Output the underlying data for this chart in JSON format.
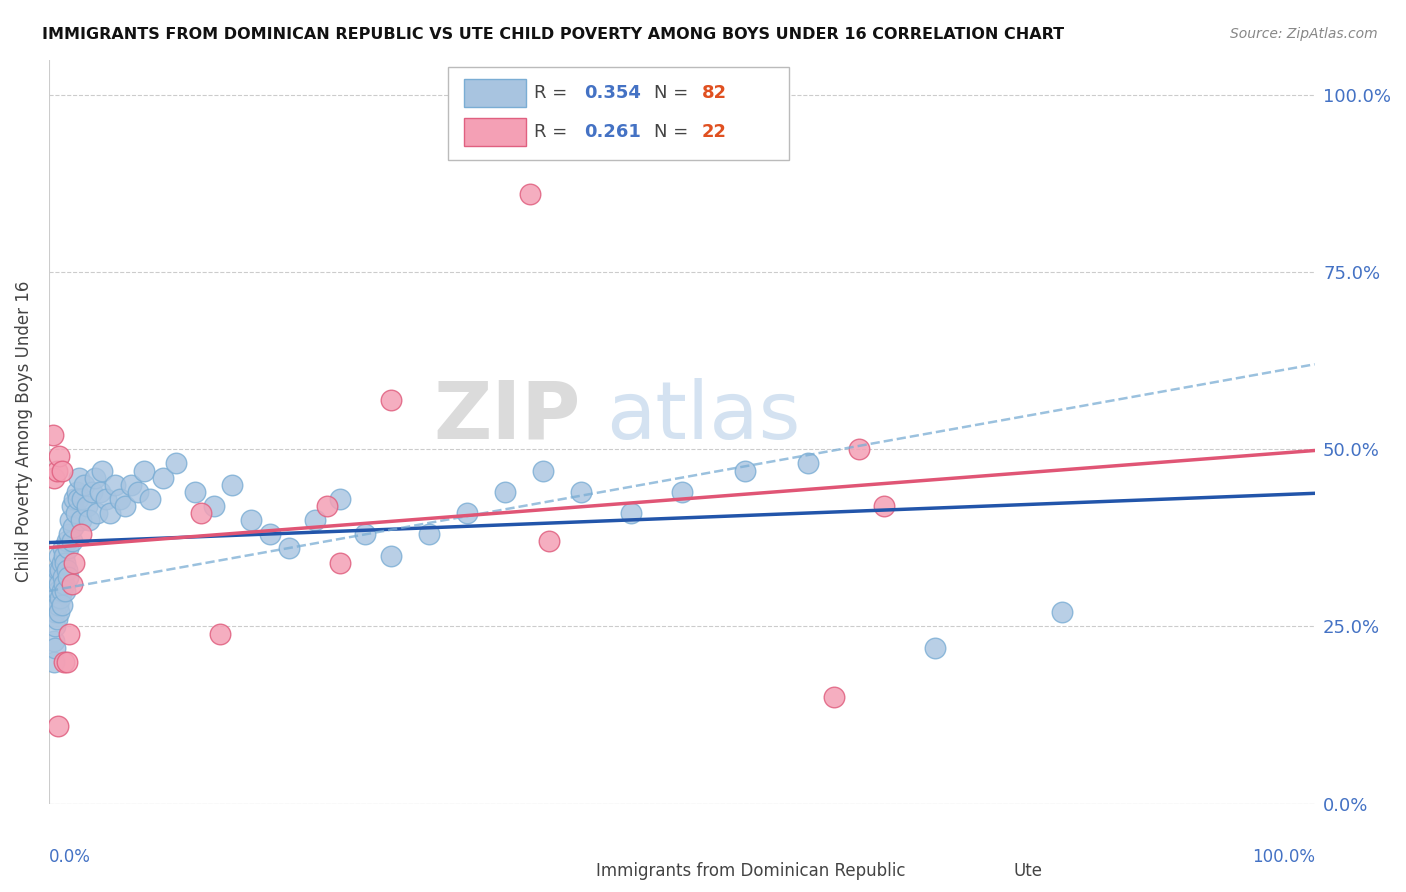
{
  "title": "IMMIGRANTS FROM DOMINICAN REPUBLIC VS UTE CHILD POVERTY AMONG BOYS UNDER 16 CORRELATION CHART",
  "source": "Source: ZipAtlas.com",
  "ylabel": "Child Poverty Among Boys Under 16",
  "legend_blue_r": "0.354",
  "legend_blue_n": "82",
  "legend_pink_r": "0.261",
  "legend_pink_n": "22",
  "blue_color": "#a8c4e0",
  "blue_edge_color": "#7aadd4",
  "blue_line_color": "#2255aa",
  "blue_dash_color": "#7aadd4",
  "pink_color": "#f4a0b5",
  "pink_edge_color": "#e06080",
  "pink_line_color": "#e05575",
  "watermark_zip": "ZIP",
  "watermark_atlas": "atlas",
  "right_yticklabels": [
    "0.0%",
    "25.0%",
    "50.0%",
    "75.0%",
    "100.0%"
  ],
  "right_ytick_color": "#4472c4",
  "xlim": [
    0.0,
    1.0
  ],
  "ylim": [
    0.0,
    1.05
  ],
  "grid_color": "#cccccc",
  "blue_x": [
    0.003,
    0.004,
    0.004,
    0.005,
    0.005,
    0.005,
    0.006,
    0.006,
    0.006,
    0.007,
    0.007,
    0.007,
    0.008,
    0.008,
    0.008,
    0.009,
    0.009,
    0.01,
    0.01,
    0.01,
    0.011,
    0.011,
    0.012,
    0.012,
    0.013,
    0.013,
    0.014,
    0.014,
    0.015,
    0.015,
    0.016,
    0.017,
    0.018,
    0.018,
    0.019,
    0.02,
    0.021,
    0.022,
    0.023,
    0.024,
    0.025,
    0.026,
    0.028,
    0.03,
    0.032,
    0.034,
    0.036,
    0.038,
    0.04,
    0.042,
    0.045,
    0.048,
    0.052,
    0.056,
    0.06,
    0.065,
    0.07,
    0.075,
    0.08,
    0.09,
    0.1,
    0.115,
    0.13,
    0.145,
    0.16,
    0.175,
    0.19,
    0.21,
    0.23,
    0.25,
    0.27,
    0.3,
    0.33,
    0.36,
    0.39,
    0.42,
    0.46,
    0.5,
    0.55,
    0.6,
    0.7,
    0.8
  ],
  "blue_y": [
    0.28,
    0.2,
    0.23,
    0.25,
    0.27,
    0.22,
    0.29,
    0.32,
    0.26,
    0.3,
    0.28,
    0.33,
    0.27,
    0.31,
    0.35,
    0.29,
    0.33,
    0.3,
    0.34,
    0.28,
    0.32,
    0.36,
    0.31,
    0.35,
    0.3,
    0.34,
    0.33,
    0.37,
    0.32,
    0.36,
    0.38,
    0.4,
    0.42,
    0.37,
    0.39,
    0.43,
    0.41,
    0.44,
    0.43,
    0.46,
    0.4,
    0.43,
    0.45,
    0.42,
    0.4,
    0.44,
    0.46,
    0.41,
    0.44,
    0.47,
    0.43,
    0.41,
    0.45,
    0.43,
    0.42,
    0.45,
    0.44,
    0.47,
    0.43,
    0.46,
    0.48,
    0.44,
    0.42,
    0.45,
    0.4,
    0.38,
    0.36,
    0.4,
    0.43,
    0.38,
    0.35,
    0.38,
    0.41,
    0.44,
    0.47,
    0.44,
    0.41,
    0.44,
    0.47,
    0.48,
    0.22,
    0.27
  ],
  "pink_x": [
    0.003,
    0.004,
    0.006,
    0.007,
    0.008,
    0.01,
    0.012,
    0.014,
    0.016,
    0.018,
    0.02,
    0.025,
    0.12,
    0.135,
    0.22,
    0.23,
    0.27,
    0.38,
    0.395,
    0.62,
    0.64,
    0.66
  ],
  "pink_y": [
    0.52,
    0.46,
    0.47,
    0.11,
    0.49,
    0.47,
    0.2,
    0.2,
    0.24,
    0.31,
    0.34,
    0.38,
    0.41,
    0.24,
    0.42,
    0.34,
    0.57,
    0.86,
    0.37,
    0.15,
    0.5,
    0.42
  ]
}
